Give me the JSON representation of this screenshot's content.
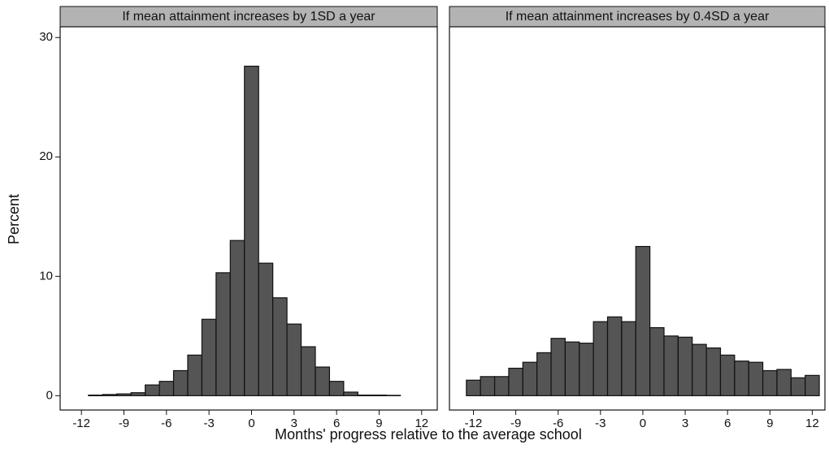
{
  "ylabel": "Percent",
  "xlabel": "Months' progress relative to the average school",
  "chart_data": [
    {
      "type": "histogram",
      "title": "If mean attainment increases by 1SD a year",
      "color": "#555555",
      "bins": [
        -12.5,
        -11.5,
        -10.5,
        -9.5,
        -8.5,
        -7.5,
        -6.5,
        -5.5,
        -4.5,
        -3.5,
        -2.5,
        -1.5,
        -0.5,
        0.5,
        1.5,
        2.5,
        3.5,
        4.5,
        5.5,
        6.5,
        7.5,
        8.5,
        9.5,
        10.5,
        11.5,
        12.5
      ],
      "values": [
        0,
        0.05,
        0.1,
        0.15,
        0.25,
        0.9,
        1.2,
        2.1,
        3.4,
        6.4,
        10.3,
        13,
        27.6,
        11.1,
        8.2,
        6,
        4.1,
        2.4,
        1.2,
        0.3,
        0.05,
        0.05,
        0.03,
        0,
        0
      ],
      "xlim": [
        -13.5,
        13.1
      ],
      "xticks": [
        -12,
        -9,
        -6,
        -3,
        0,
        3,
        6,
        9,
        12
      ],
      "ylim": [
        -1.2,
        30.9
      ],
      "yticks": [
        0,
        10,
        20,
        30
      ]
    },
    {
      "type": "histogram",
      "title": "If mean attainment increases by 0.4SD a year",
      "color": "#555555",
      "bins": [
        -12.5,
        -11.5,
        -10.5,
        -9.5,
        -8.5,
        -7.5,
        -6.5,
        -5.5,
        -4.5,
        -3.5,
        -2.5,
        -1.5,
        -0.5,
        0.5,
        1.5,
        2.5,
        3.5,
        4.5,
        5.5,
        6.5,
        7.5,
        8.5,
        9.5,
        10.5,
        11.5,
        12.5
      ],
      "values": [
        1.3,
        1.6,
        1.6,
        2.3,
        2.8,
        3.6,
        4.8,
        4.5,
        4.4,
        6.2,
        6.6,
        6.2,
        12.5,
        5.7,
        5.0,
        4.9,
        4.3,
        4.0,
        3.4,
        2.9,
        2.8,
        2.1,
        2.2,
        1.5,
        1.7
      ],
      "xlim": [
        -13.7,
        12.9
      ],
      "xticks": [
        -12,
        -9,
        -6,
        -3,
        0,
        3,
        6,
        9,
        12
      ],
      "ylim": [
        -1.2,
        30.9
      ]
    }
  ]
}
